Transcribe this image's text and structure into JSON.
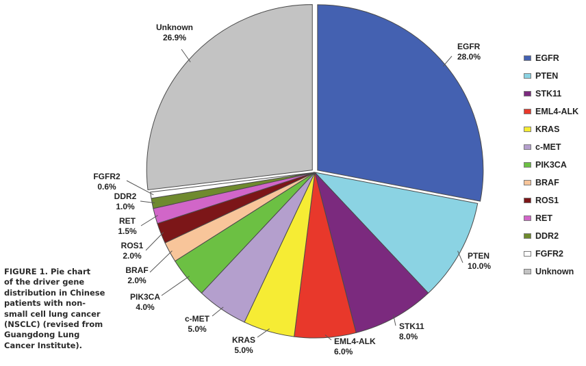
{
  "chart_data": {
    "type": "pie",
    "title": "",
    "legend_position": "right",
    "exploded": [
      "EGFR",
      "Unknown"
    ],
    "slices": [
      {
        "name": "EGFR",
        "value": 28.0,
        "pct_label": "28.0%",
        "color": "#4461b1"
      },
      {
        "name": "PTEN",
        "value": 10.0,
        "pct_label": "10.0%",
        "color": "#8bd3e3"
      },
      {
        "name": "STK11",
        "value": 8.0,
        "pct_label": "8.0%",
        "color": "#7b2a7e"
      },
      {
        "name": "EML4-ALK",
        "value": 6.0,
        "pct_label": "6.0%",
        "color": "#e8382b"
      },
      {
        "name": "KRAS",
        "value": 5.0,
        "pct_label": "5.0%",
        "color": "#f6ec34"
      },
      {
        "name": "c-MET",
        "value": 5.0,
        "pct_label": "5.0%",
        "color": "#b49fcd"
      },
      {
        "name": "PIK3CA",
        "value": 4.0,
        "pct_label": "4.0%",
        "color": "#6cc043"
      },
      {
        "name": "BRAF",
        "value": 2.0,
        "pct_label": "2.0%",
        "color": "#f8c59a"
      },
      {
        "name": "ROS1",
        "value": 2.0,
        "pct_label": "2.0%",
        "color": "#7c1618"
      },
      {
        "name": "RET",
        "value": 1.5,
        "pct_label": "1.5%",
        "color": "#d166c8"
      },
      {
        "name": "DDR2",
        "value": 1.0,
        "pct_label": "1.0%",
        "color": "#6f8a2e"
      },
      {
        "name": "FGFR2",
        "value": 0.6,
        "pct_label": "0.6%",
        "color": "#ffffff"
      },
      {
        "name": "Unknown",
        "value": 26.9,
        "pct_label": "26.9%",
        "color": "#c3c3c3"
      }
    ],
    "legend": [
      {
        "label": "EGFR",
        "color": "#4461b1"
      },
      {
        "label": "PTEN",
        "color": "#8bd3e3"
      },
      {
        "label": "STK11",
        "color": "#7b2a7e"
      },
      {
        "label": "EML4-ALK",
        "color": "#e8382b"
      },
      {
        "label": "KRAS",
        "color": "#f6ec34"
      },
      {
        "label": "c-MET",
        "color": "#b49fcd"
      },
      {
        "label": "PIK3CA",
        "color": "#6cc043"
      },
      {
        "label": "BRAF",
        "color": "#f8c59a"
      },
      {
        "label": "ROS1",
        "color": "#7c1618"
      },
      {
        "label": "RET",
        "color": "#d166c8"
      },
      {
        "label": "DDR2",
        "color": "#6f8a2e"
      },
      {
        "label": "FGFR2",
        "color": "#ffffff"
      },
      {
        "label": "Unknown",
        "color": "#c3c3c3"
      }
    ]
  },
  "caption": "FIGURE 1. Pie chart\nof the driver gene\ndistribution in Chinese\npatients with non-\nsmall cell lung cancer\n(NSCLC) (revised from\nGuangdong Lung\nCancer Institute)."
}
